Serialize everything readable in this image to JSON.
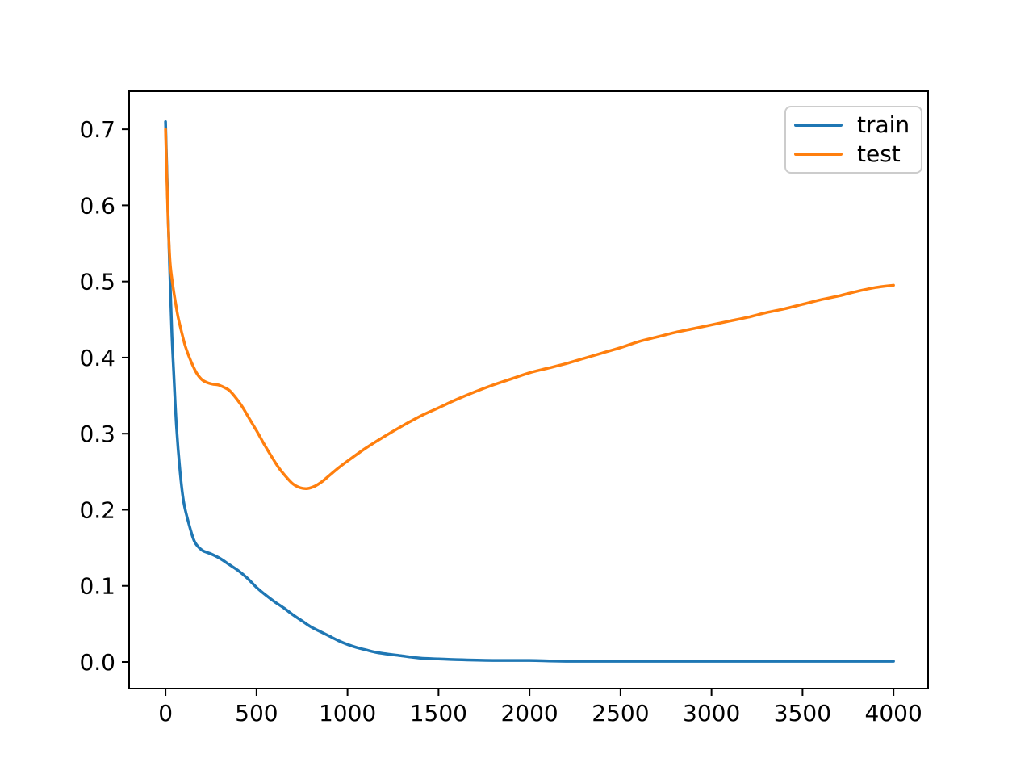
{
  "chart_data": {
    "type": "line",
    "title": "",
    "xlabel": "",
    "ylabel": "",
    "grid": false,
    "x_range": [
      -200,
      4190
    ],
    "y_range": [
      -0.035,
      0.75
    ],
    "x_tick_values": [
      0,
      500,
      1000,
      1500,
      2000,
      2500,
      3000,
      3500,
      4000
    ],
    "x_tick_labels": [
      "0",
      "500",
      "1000",
      "1500",
      "2000",
      "2500",
      "3000",
      "3500",
      "4000"
    ],
    "y_tick_values": [
      0.0,
      0.1,
      0.2,
      0.3,
      0.4,
      0.5,
      0.6,
      0.7
    ],
    "y_tick_labels": [
      "0.0",
      "0.1",
      "0.2",
      "0.3",
      "0.4",
      "0.5",
      "0.6",
      "0.7"
    ],
    "legend": {
      "position": "upper right",
      "entries": [
        "train",
        "test"
      ]
    },
    "series": [
      {
        "name": "train",
        "color": "#1f77b4",
        "points": [
          [
            0,
            0.71
          ],
          [
            8,
            0.64
          ],
          [
            15,
            0.58
          ],
          [
            25,
            0.5
          ],
          [
            35,
            0.43
          ],
          [
            45,
            0.38
          ],
          [
            60,
            0.31
          ],
          [
            80,
            0.25
          ],
          [
            100,
            0.21
          ],
          [
            130,
            0.18
          ],
          [
            160,
            0.158
          ],
          [
            200,
            0.147
          ],
          [
            250,
            0.142
          ],
          [
            300,
            0.136
          ],
          [
            350,
            0.128
          ],
          [
            400,
            0.12
          ],
          [
            450,
            0.11
          ],
          [
            500,
            0.098
          ],
          [
            550,
            0.088
          ],
          [
            600,
            0.079
          ],
          [
            650,
            0.071
          ],
          [
            700,
            0.062
          ],
          [
            750,
            0.054
          ],
          [
            800,
            0.046
          ],
          [
            850,
            0.04
          ],
          [
            900,
            0.034
          ],
          [
            950,
            0.028
          ],
          [
            1000,
            0.023
          ],
          [
            1050,
            0.019
          ],
          [
            1100,
            0.016
          ],
          [
            1150,
            0.013
          ],
          [
            1200,
            0.011
          ],
          [
            1300,
            0.008
          ],
          [
            1400,
            0.005
          ],
          [
            1500,
            0.004
          ],
          [
            1600,
            0.003
          ],
          [
            1800,
            0.002
          ],
          [
            2000,
            0.002
          ],
          [
            2200,
            0.001
          ],
          [
            2600,
            0.001
          ],
          [
            3000,
            0.001
          ],
          [
            3500,
            0.001
          ],
          [
            4000,
            0.001
          ]
        ]
      },
      {
        "name": "test",
        "color": "#ff7f0e",
        "points": [
          [
            0,
            0.7
          ],
          [
            8,
            0.63
          ],
          [
            15,
            0.575
          ],
          [
            25,
            0.525
          ],
          [
            40,
            0.495
          ],
          [
            55,
            0.472
          ],
          [
            70,
            0.452
          ],
          [
            90,
            0.432
          ],
          [
            110,
            0.414
          ],
          [
            140,
            0.395
          ],
          [
            170,
            0.38
          ],
          [
            200,
            0.371
          ],
          [
            230,
            0.367
          ],
          [
            260,
            0.365
          ],
          [
            290,
            0.364
          ],
          [
            320,
            0.361
          ],
          [
            350,
            0.357
          ],
          [
            380,
            0.349
          ],
          [
            420,
            0.336
          ],
          [
            460,
            0.32
          ],
          [
            500,
            0.304
          ],
          [
            540,
            0.287
          ],
          [
            580,
            0.271
          ],
          [
            620,
            0.256
          ],
          [
            660,
            0.244
          ],
          [
            700,
            0.234
          ],
          [
            740,
            0.229
          ],
          [
            780,
            0.228
          ],
          [
            820,
            0.231
          ],
          [
            860,
            0.237
          ],
          [
            900,
            0.245
          ],
          [
            950,
            0.255
          ],
          [
            1000,
            0.264
          ],
          [
            1100,
            0.281
          ],
          [
            1200,
            0.296
          ],
          [
            1300,
            0.31
          ],
          [
            1400,
            0.323
          ],
          [
            1500,
            0.334
          ],
          [
            1600,
            0.345
          ],
          [
            1700,
            0.355
          ],
          [
            1800,
            0.364
          ],
          [
            1900,
            0.372
          ],
          [
            2000,
            0.38
          ],
          [
            2100,
            0.386
          ],
          [
            2200,
            0.392
          ],
          [
            2300,
            0.399
          ],
          [
            2400,
            0.406
          ],
          [
            2500,
            0.413
          ],
          [
            2600,
            0.421
          ],
          [
            2700,
            0.427
          ],
          [
            2800,
            0.433
          ],
          [
            2900,
            0.438
          ],
          [
            3000,
            0.443
          ],
          [
            3100,
            0.448
          ],
          [
            3200,
            0.453
          ],
          [
            3300,
            0.459
          ],
          [
            3400,
            0.464
          ],
          [
            3500,
            0.47
          ],
          [
            3600,
            0.476
          ],
          [
            3700,
            0.481
          ],
          [
            3800,
            0.487
          ],
          [
            3900,
            0.492
          ],
          [
            4000,
            0.495
          ]
        ]
      }
    ]
  }
}
